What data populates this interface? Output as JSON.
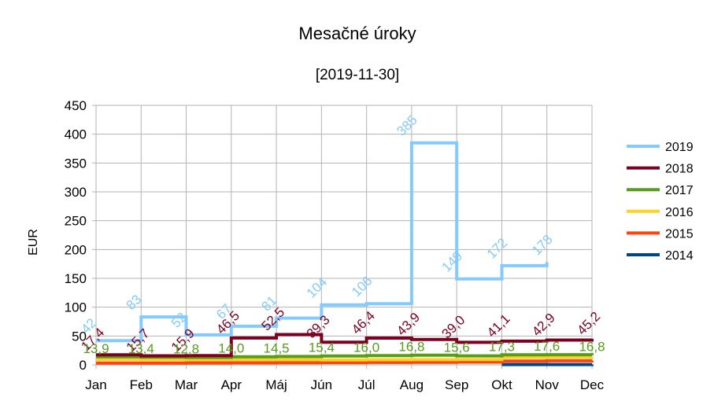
{
  "chart_data": {
    "type": "line",
    "step": true,
    "title": "Mesačné úroky",
    "subtitle": "[2019-11-30]",
    "xlabel": "",
    "ylabel": "EUR",
    "ylim": [
      0,
      450
    ],
    "yticks": [
      0,
      50,
      100,
      150,
      200,
      250,
      300,
      350,
      400,
      450
    ],
    "grid": true,
    "legend_position": "right",
    "categories": [
      "Jan",
      "Feb",
      "Mar",
      "Apr",
      "Máj",
      "Jún",
      "Júl",
      "Aug",
      "Sep",
      "Okt",
      "Nov",
      "Dec"
    ],
    "series": [
      {
        "name": "2019",
        "color": "#83caff",
        "values": [
          42,
          83,
          52,
          67,
          81,
          104,
          106,
          385,
          149,
          172,
          178,
          null
        ],
        "labels": [
          "42",
          "83",
          "52",
          "67",
          "81",
          "104",
          "106",
          "385",
          "149",
          "172",
          "178",
          ""
        ]
      },
      {
        "name": "2018",
        "color": "#7e0021",
        "values": [
          17.4,
          15.7,
          15.9,
          46.5,
          52.5,
          39.3,
          46.4,
          43.9,
          39.0,
          41.1,
          42.9,
          45.2
        ],
        "labels": [
          "17,4",
          "15,7",
          "15,9",
          "46,5",
          "52,5",
          "39,3",
          "46,4",
          "43,9",
          "39,0",
          "41,1",
          "42,9",
          "45,2"
        ]
      },
      {
        "name": "2017",
        "color": "#579d1c",
        "values": [
          13.9,
          13.4,
          12.8,
          14.0,
          14.5,
          15.4,
          16.0,
          16.8,
          15.6,
          17.3,
          17.6,
          16.8
        ],
        "labels": [
          "13,9",
          "13,4",
          "12,8",
          "14,0",
          "14,5",
          "15,4",
          "16,0",
          "16,8",
          "15,6",
          "17,3",
          "17,6",
          "16,8"
        ]
      },
      {
        "name": "2016",
        "color": "#ffd320",
        "values": [
          9.5,
          9.3,
          9.0,
          9.2,
          9.0,
          8.6,
          8.8,
          9.0,
          9.2,
          13.0,
          13.2,
          13.4
        ],
        "labels": []
      },
      {
        "name": "2015",
        "color": "#ff420e",
        "values": [
          3.0,
          3.2,
          3.4,
          3.6,
          3.8,
          4.0,
          4.2,
          4.5,
          4.8,
          6.5,
          7.0,
          7.5
        ],
        "labels": []
      },
      {
        "name": "2014",
        "color": "#004586",
        "values": [
          null,
          null,
          null,
          null,
          null,
          null,
          null,
          null,
          null,
          0.5,
          0.6,
          0.7
        ],
        "labels": []
      }
    ]
  }
}
